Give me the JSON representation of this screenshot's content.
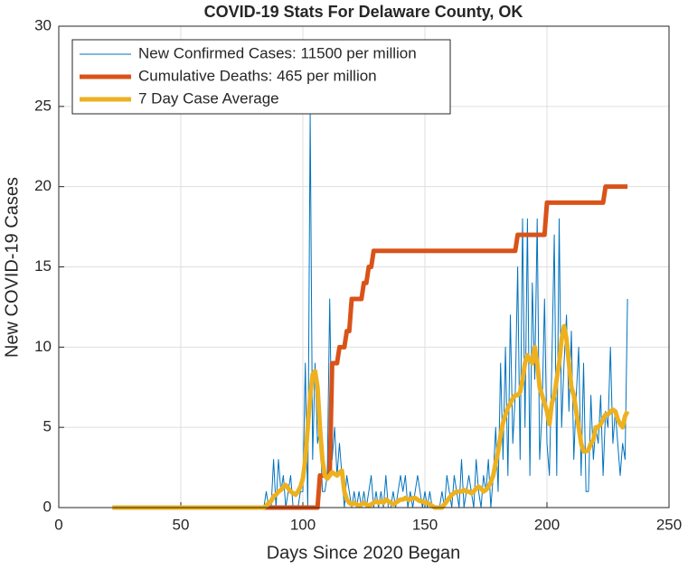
{
  "chart_data": {
    "type": "line",
    "title": "COVID-19 Stats For Delaware County, OK",
    "xlabel": "Days Since 2020 Began",
    "ylabel": "New COVID-19 Cases",
    "xlim": [
      0,
      250
    ],
    "xticks": [
      0,
      50,
      100,
      150,
      200,
      250
    ],
    "ylim": [
      0,
      30
    ],
    "yticks": [
      0,
      5,
      10,
      15,
      20,
      25,
      30
    ],
    "grid": true,
    "legend": "northwest",
    "x": [
      22,
      23,
      24,
      25,
      26,
      27,
      28,
      29,
      30,
      31,
      32,
      33,
      34,
      35,
      36,
      37,
      38,
      39,
      40,
      41,
      42,
      43,
      44,
      45,
      46,
      47,
      48,
      49,
      50,
      51,
      52,
      53,
      54,
      55,
      56,
      57,
      58,
      59,
      60,
      61,
      62,
      63,
      64,
      65,
      66,
      67,
      68,
      69,
      70,
      71,
      72,
      73,
      74,
      75,
      76,
      77,
      78,
      79,
      80,
      81,
      82,
      83,
      84,
      85,
      86,
      87,
      88,
      89,
      90,
      91,
      92,
      93,
      94,
      95,
      96,
      97,
      98,
      99,
      100,
      101,
      102,
      103,
      104,
      105,
      106,
      107,
      108,
      109,
      110,
      111,
      112,
      113,
      114,
      115,
      116,
      117,
      118,
      119,
      120,
      121,
      122,
      123,
      124,
      125,
      126,
      127,
      128,
      129,
      130,
      131,
      132,
      133,
      134,
      135,
      136,
      137,
      138,
      139,
      140,
      141,
      142,
      143,
      144,
      145,
      146,
      147,
      148,
      149,
      150,
      151,
      152,
      153,
      154,
      155,
      156,
      157,
      158,
      159,
      160,
      161,
      162,
      163,
      164,
      165,
      166,
      167,
      168,
      169,
      170,
      171,
      172,
      173,
      174,
      175,
      176,
      177,
      178,
      179,
      180,
      181,
      182,
      183,
      184,
      185,
      186,
      187,
      188,
      189,
      190,
      191,
      192,
      193,
      194,
      195,
      196,
      197,
      198,
      199,
      200,
      201,
      202,
      203,
      204,
      205,
      206,
      207,
      208,
      209,
      210,
      211,
      212,
      213,
      214,
      215,
      216,
      217,
      218,
      219,
      220,
      221,
      222,
      223,
      224,
      225,
      226,
      227,
      228,
      229,
      230,
      231,
      232,
      233
    ],
    "series": [
      {
        "name": "New Confirmed Cases: 11500 per million",
        "color": "#0072BD",
        "line_width": 1,
        "values": [
          0,
          0,
          0,
          0,
          0,
          0,
          0,
          0,
          0,
          0,
          0,
          0,
          0,
          0,
          0,
          0,
          0,
          0,
          0,
          0,
          0,
          0,
          0,
          0,
          0,
          0,
          0,
          0,
          0,
          0,
          0,
          0,
          0,
          0,
          0,
          0,
          0,
          0,
          0,
          0,
          0,
          0,
          0,
          0,
          0,
          0,
          0,
          0,
          0,
          0,
          0,
          0,
          0,
          0,
          0,
          0,
          0,
          0,
          0,
          0,
          0,
          0,
          0,
          1,
          0,
          0,
          3,
          0,
          3,
          1,
          2,
          0,
          1,
          2,
          0,
          0,
          0,
          1,
          1,
          9,
          0,
          24.5,
          3,
          9,
          4,
          5,
          1,
          1,
          2,
          13,
          3,
          5,
          2,
          4,
          2,
          0,
          2,
          1,
          0,
          1,
          0,
          1,
          0,
          1,
          0,
          1,
          2,
          0,
          1,
          0,
          1,
          0,
          2,
          0,
          0,
          1,
          0,
          1,
          2,
          1,
          2,
          0,
          1,
          0,
          1,
          2,
          1,
          0,
          1,
          0,
          1,
          0,
          0,
          0,
          0,
          1,
          0,
          2,
          1,
          0,
          2,
          1,
          0,
          3,
          0,
          1,
          2,
          1,
          0,
          3,
          1,
          0,
          2,
          1,
          3,
          0,
          2,
          5,
          1,
          9,
          3,
          10,
          2,
          12,
          4,
          7,
          15,
          3,
          18,
          5,
          18,
          2,
          14,
          8,
          18,
          3,
          6,
          13,
          4,
          2,
          9,
          17,
          2,
          18,
          5,
          9,
          12,
          6,
          11,
          3,
          7,
          10,
          2,
          9,
          1,
          1,
          7,
          3,
          5,
          4,
          7,
          2,
          6,
          5,
          10,
          4,
          6,
          4,
          2,
          4,
          3,
          13
        ]
      },
      {
        "name": "Cumulative Deaths: 465 per million",
        "color": "#D95319",
        "line_width": 5,
        "values": [
          0,
          0,
          0,
          0,
          0,
          0,
          0,
          0,
          0,
          0,
          0,
          0,
          0,
          0,
          0,
          0,
          0,
          0,
          0,
          0,
          0,
          0,
          0,
          0,
          0,
          0,
          0,
          0,
          0,
          0,
          0,
          0,
          0,
          0,
          0,
          0,
          0,
          0,
          0,
          0,
          0,
          0,
          0,
          0,
          0,
          0,
          0,
          0,
          0,
          0,
          0,
          0,
          0,
          0,
          0,
          0,
          0,
          0,
          0,
          0,
          0,
          0,
          0,
          0,
          0,
          0,
          0,
          0,
          0,
          0,
          0,
          0,
          0,
          0,
          0,
          0,
          0,
          0,
          0,
          0,
          0,
          0,
          0,
          0,
          0,
          2,
          2,
          2,
          2,
          2,
          9,
          9,
          9,
          10,
          10,
          10,
          11,
          11,
          13,
          13,
          13,
          13,
          13,
          14,
          14,
          15,
          15,
          16,
          16,
          16,
          16,
          16,
          16,
          16,
          16,
          16,
          16,
          16,
          16,
          16,
          16,
          16,
          16,
          16,
          16,
          16,
          16,
          16,
          16,
          16,
          16,
          16,
          16,
          16,
          16,
          16,
          16,
          16,
          16,
          16,
          16,
          16,
          16,
          16,
          16,
          16,
          16,
          16,
          16,
          16,
          16,
          16,
          16,
          16,
          16,
          16,
          16,
          16,
          16,
          16,
          16,
          16,
          16,
          16,
          16,
          16,
          17,
          17,
          17,
          17,
          17,
          17,
          17,
          17,
          17,
          17,
          17,
          17,
          19,
          19,
          19,
          19,
          19,
          19,
          19,
          19,
          19,
          19,
          19,
          19,
          19,
          19,
          19,
          19,
          19,
          19,
          19,
          19,
          19,
          19,
          19,
          19,
          20,
          20,
          20,
          20,
          20,
          20,
          20,
          20,
          20,
          20
        ]
      },
      {
        "name": "7 Day Case Average",
        "color": "#EDB120",
        "line_width": 5,
        "values": [
          0,
          0,
          0,
          0,
          0,
          0,
          0,
          0,
          0,
          0,
          0,
          0,
          0,
          0,
          0,
          0,
          0,
          0,
          0,
          0,
          0,
          0,
          0,
          0,
          0,
          0,
          0,
          0,
          0,
          0,
          0,
          0,
          0,
          0,
          0,
          0,
          0,
          0,
          0,
          0,
          0,
          0,
          0,
          0,
          0,
          0,
          0,
          0,
          0,
          0,
          0,
          0,
          0,
          0,
          0,
          0,
          0,
          0,
          0,
          0,
          0,
          0,
          0,
          0.1,
          0.3,
          0.4,
          0.7,
          0.8,
          1,
          1.1,
          1.3,
          1.4,
          1.2,
          1,
          0.9,
          0.8,
          1,
          1.3,
          1.8,
          3,
          5,
          7,
          8.3,
          8.5,
          7.5,
          5,
          3,
          2,
          1.8,
          2,
          2.2,
          2.1,
          2,
          2.2,
          2.3,
          1,
          0.5,
          0.3,
          0.2,
          0.3,
          0.2,
          0.1,
          0.2,
          0.3,
          0.2,
          0.1,
          0.2,
          0.3,
          0.4,
          0.3,
          0.4,
          0.3,
          0.5,
          0.4,
          0.3,
          0.2,
          0.3,
          0.4,
          0.5,
          0.5,
          0.6,
          0.5,
          0.5,
          0.6,
          0.6,
          0.5,
          0.4,
          0.4,
          0.3,
          0.3,
          0.2,
          0.1,
          0,
          0,
          0,
          0,
          0.2,
          0.4,
          0.6,
          0.8,
          0.9,
          1,
          1,
          1,
          1.1,
          1,
          1,
          0.9,
          1,
          1.2,
          1.3,
          1.2,
          1,
          1.1,
          1.3,
          1.6,
          2,
          2.8,
          3.5,
          4.5,
          5.3,
          5.8,
          6.2,
          6.5,
          6.8,
          7,
          7,
          7.2,
          8,
          9,
          9.5,
          9.2,
          9,
          10,
          9,
          7.5,
          7,
          6.5,
          6,
          5.2,
          6.5,
          7,
          8,
          9,
          10.5,
          11.3,
          10.5,
          9,
          7.5,
          7,
          6,
          5,
          4,
          3.5,
          3.5,
          3.6,
          4,
          4.2,
          5,
          5,
          5.2,
          5.5,
          5.8,
          5.8,
          6,
          6.1,
          6,
          5.5,
          5.2,
          5,
          5.7,
          6
        ]
      }
    ]
  }
}
